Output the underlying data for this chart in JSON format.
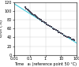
{
  "title": "",
  "ylabel": "σ/σ₀ (%)",
  "xlabel": "Time   aₜ (reference point 50 °C)",
  "xlim": [
    0.01,
    100
  ],
  "ylim": [
    0,
    120
  ],
  "yticks": [
    0,
    20,
    40,
    60,
    80,
    100,
    120
  ],
  "xticks_pos": [
    0.01,
    0.1,
    1,
    10,
    100
  ],
  "xticks_labels": [
    "0.01",
    "0.1",
    "1",
    "10",
    "100"
  ],
  "scatter_x": [
    0.05,
    0.06,
    0.07,
    0.08,
    0.09,
    0.1,
    0.12,
    0.13,
    0.15,
    0.18,
    0.2,
    0.22,
    0.25,
    0.28,
    0.3,
    0.35,
    0.4,
    0.45,
    0.5,
    0.6,
    0.7,
    0.8,
    0.9,
    1.0,
    1.2,
    1.5,
    1.8,
    2.0,
    2.5,
    3.0,
    3.5,
    4.0,
    5.0,
    6.0,
    7.0,
    8.0,
    10.0,
    12.0,
    15.0,
    20.0,
    25.0,
    30.0,
    40.0,
    50.0,
    60.0,
    70.0
  ],
  "scatter_y": [
    108,
    105,
    103,
    101,
    99,
    98,
    96,
    95,
    93,
    91,
    90,
    88,
    87,
    86,
    85,
    83,
    82,
    80,
    79,
    77,
    76,
    74,
    73,
    72,
    70,
    68,
    66,
    65,
    63,
    61,
    59,
    58,
    56,
    54,
    52,
    51,
    49,
    47,
    45,
    43,
    41,
    40,
    38,
    36,
    35,
    34
  ],
  "line_x": [
    0.01,
    100
  ],
  "line_y": [
    116,
    27
  ],
  "scatter_color": "#4a4a5a",
  "scatter_marker": "s",
  "scatter_size": 2.5,
  "line_color": "#44ccdd",
  "line_width": 0.8,
  "grid": true,
  "grid_color": "#cccccc",
  "bg_color": "#ffffff",
  "ylabel_fontsize": 4,
  "xlabel_fontsize": 3.5,
  "tick_fontsize": 3.5
}
